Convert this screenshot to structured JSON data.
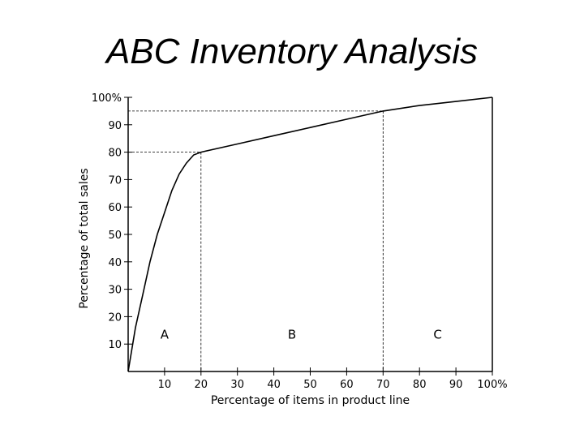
{
  "slide": {
    "title": "ABC Inventory Analysis"
  },
  "chart_data": {
    "type": "line",
    "title": "ABC Inventory Analysis",
    "xlabel": "Percentage of items in product line",
    "ylabel": "Percentage of total sales",
    "xlim": [
      0,
      100
    ],
    "ylim": [
      0,
      100
    ],
    "x_ticks": [
      "10",
      "20",
      "30",
      "40",
      "50",
      "60",
      "70",
      "80",
      "90",
      "100%"
    ],
    "y_ticks": [
      "10",
      "20",
      "30",
      "40",
      "50",
      "60",
      "70",
      "80",
      "90",
      "100%"
    ],
    "grid": false,
    "series": [
      {
        "x": [
          0,
          1,
          2,
          4,
          6,
          8,
          10,
          12,
          14,
          16,
          18,
          20,
          30,
          40,
          50,
          60,
          70,
          80,
          90,
          100
        ],
        "y": [
          0,
          8,
          16,
          28,
          40,
          50,
          58,
          66,
          72,
          76,
          79,
          80,
          83,
          86,
          89,
          92,
          95,
          97,
          98.5,
          100
        ]
      }
    ],
    "reference_lines": [
      {
        "x": 20,
        "y": 80
      },
      {
        "x": 70,
        "y": 95
      }
    ],
    "regions": [
      {
        "label": "A",
        "x": 10
      },
      {
        "label": "B",
        "x": 45
      },
      {
        "label": "C",
        "x": 85
      }
    ]
  }
}
